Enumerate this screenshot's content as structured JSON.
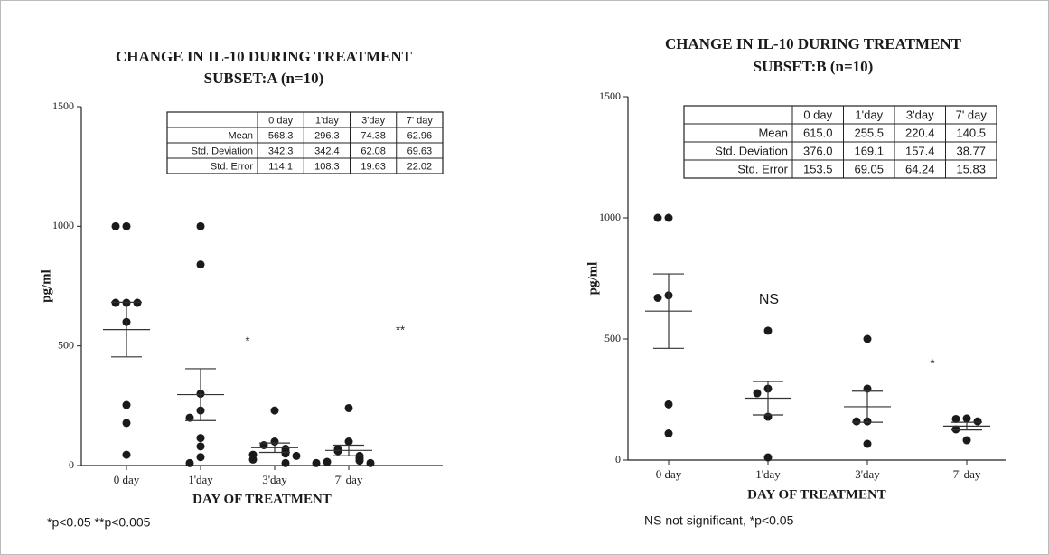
{
  "chart_data": [
    {
      "type": "dotplot",
      "title": "CHANGE IN IL-10 DURING TREATMENT",
      "subtitle": "SUBSET:A (n=10)",
      "ylabel": "pg/ml",
      "xlabel": "DAY OF TREATMENT",
      "categories": [
        "0 day",
        "1'day",
        "3'day",
        "7' day"
      ],
      "values": [
        [
          1000,
          1000,
          680,
          680,
          680,
          600,
          253,
          178,
          45
        ],
        [
          1000,
          840,
          300,
          230,
          200,
          115,
          80,
          35,
          10
        ],
        [
          230,
          100,
          85,
          70,
          60,
          50,
          45,
          40,
          25,
          10
        ],
        [
          240,
          100,
          70,
          60,
          40,
          30,
          20,
          15,
          10,
          10
        ]
      ],
      "color": "#1a1a1a",
      "ylim": [
        0,
        1500
      ],
      "yticks": [
        0,
        500,
        1000,
        1500
      ],
      "significance": [
        null,
        "*",
        null,
        "**"
      ],
      "table": {
        "columns": [
          "0 day",
          "1'day",
          "3'day",
          "7' day"
        ],
        "rows": [
          {
            "name": "Mean",
            "values": [
              568.3,
              296.3,
              74.38,
              62.96
            ]
          },
          {
            "name": "Std. Deviation",
            "values": [
              342.3,
              342.4,
              62.08,
              69.63
            ]
          },
          {
            "name": "Std. Error",
            "values": [
              114.1,
              108.3,
              19.63,
              22.02
            ]
          }
        ]
      },
      "footnote": "*p<0.05 **p<0.005"
    },
    {
      "type": "dotplot",
      "title": "CHANGE IN IL-10 DURING TREATMENT",
      "subtitle": "SUBSET:B (n=10)",
      "ylabel": "pg/ml",
      "xlabel": "DAY OF TREATMENT",
      "categories": [
        "0 day",
        "1'day",
        "3'day",
        "7' day"
      ],
      "values": [
        [
          1000,
          1000,
          680,
          670,
          230,
          110
        ],
        [
          534,
          295,
          276,
          179,
          11
        ],
        [
          500,
          295,
          160,
          160,
          67
        ],
        [
          172,
          170,
          160,
          127,
          82
        ]
      ],
      "color": "#1a1a1a",
      "ylim": [
        0,
        1500
      ],
      "yticks": [
        0,
        500,
        1000,
        1500
      ],
      "significance": [
        null,
        "NS",
        null,
        "*"
      ],
      "table": {
        "columns": [
          "0 day",
          "1'day",
          "3'day",
          "7' day"
        ],
        "rows": [
          {
            "name": "Mean",
            "values": [
              {
                "value": 615,
                "label": "615.0"
              },
              255.5,
              220.4,
              140.5
            ]
          },
          {
            "name": "Std. Deviation",
            "values": [
              {
                "value": 376,
                "label": "376.0"
              },
              169.1,
              157.4,
              38.77
            ]
          },
          {
            "name": "Std. Error",
            "values": [
              153.5,
              69.05,
              64.24,
              15.83
            ]
          }
        ]
      },
      "footnote": "NS not significant, *p<0.05"
    }
  ]
}
